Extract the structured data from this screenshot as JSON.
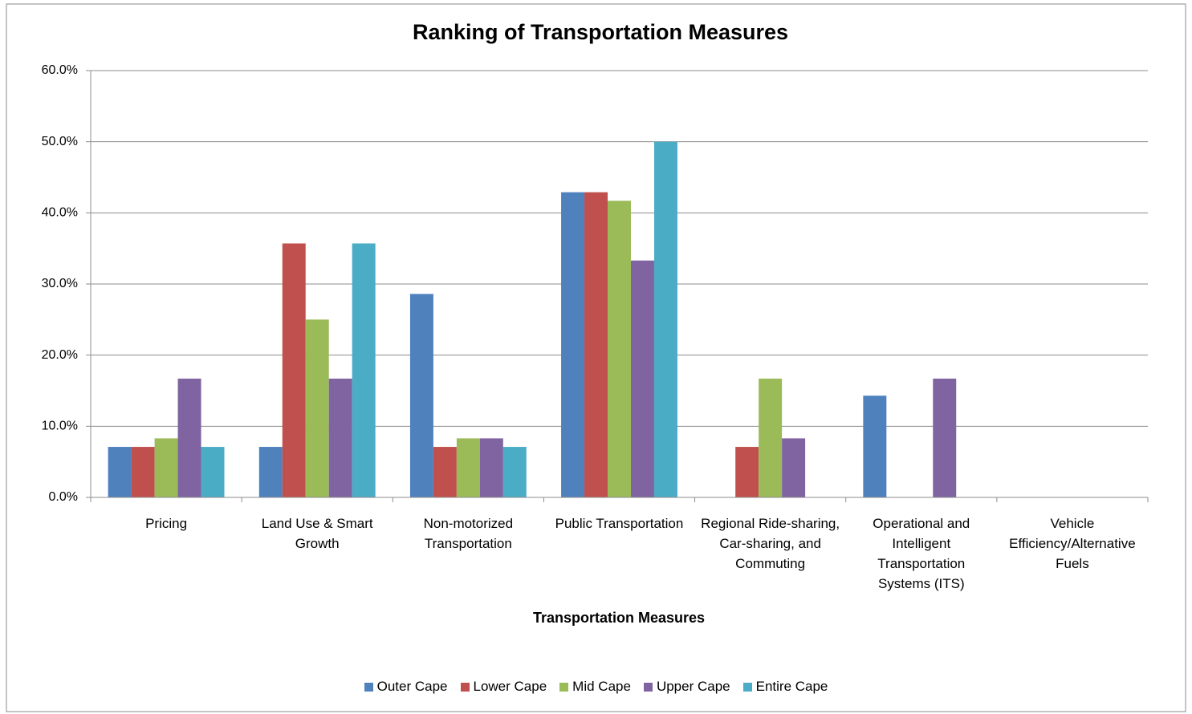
{
  "chart_data": {
    "type": "bar",
    "title": "Ranking of Transportation Measures",
    "x_label": "Transportation Measures",
    "categories": [
      "Pricing",
      "Land Use & Smart Growth",
      "Non-motorized Transportation",
      "Public Transportation",
      "Regional Ride-sharing, Car-sharing, and Commuting",
      "Operational and Intelligent Transportation Systems (ITS)",
      "Vehicle Efficiency/Alternative Fuels"
    ],
    "series": [
      {
        "name": "Outer Cape",
        "color": "#4f81bd",
        "values": [
          7.1,
          7.1,
          28.6,
          42.9,
          0,
          14.3,
          0
        ]
      },
      {
        "name": "Lower Cape",
        "color": "#c0504d",
        "values": [
          7.1,
          35.7,
          7.1,
          42.9,
          7.1,
          0,
          0
        ]
      },
      {
        "name": "Mid Cape",
        "color": "#9bbb59",
        "values": [
          8.3,
          25.0,
          8.3,
          41.7,
          16.7,
          0,
          0
        ]
      },
      {
        "name": "Upper Cape",
        "color": "#8064a2",
        "values": [
          16.7,
          16.7,
          8.3,
          33.3,
          8.3,
          16.7,
          0
        ]
      },
      {
        "name": "Entire Cape",
        "color": "#4bacc6",
        "values": [
          7.1,
          35.7,
          7.1,
          50.0,
          0,
          0,
          0
        ]
      }
    ],
    "ylim": [
      0,
      60
    ],
    "yticks": [
      {
        "value": 0,
        "label": "0.0%"
      },
      {
        "value": 10,
        "label": "10.0%"
      },
      {
        "value": 20,
        "label": "20.0%"
      },
      {
        "value": 30,
        "label": "30.0%"
      },
      {
        "value": 40,
        "label": "40.0%"
      },
      {
        "value": 50,
        "label": "50.0%"
      },
      {
        "value": 60,
        "label": "60.0%"
      }
    ],
    "grid": true,
    "legend": "bottom"
  }
}
